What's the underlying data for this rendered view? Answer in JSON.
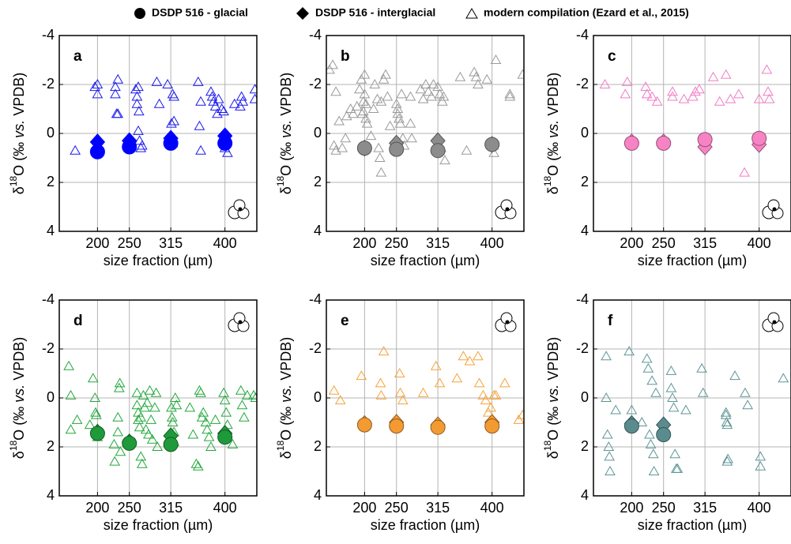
{
  "legend": [
    "DSDP 516 - glacial",
    "DSDP 516 - interglacial",
    "modern compilation (Ezard et al., 2015)"
  ],
  "chart_data": [
    {
      "type": "scatter",
      "label": "a",
      "ylabel": [
        "δ",
        "18",
        "O (‰ ",
        "vs.",
        " VPDB)"
      ],
      "xlabel": "size fraction (µm)",
      "xlim": [
        140,
        450
      ],
      "ylim": [
        4,
        -4
      ],
      "xticks": [
        200,
        250,
        315,
        400
      ],
      "yticks": [
        -4,
        -2,
        0,
        2,
        4
      ],
      "grid": true,
      "series": [
        {
          "marker": "triangle",
          "color": "#1a1aee",
          "x": [
            165,
            196,
            200,
            200,
            228,
            228,
            232,
            230,
            232,
            260,
            262,
            262,
            264,
            265,
            264,
            266,
            268,
            270,
            293,
            297,
            310,
            316,
            318,
            320,
            318,
            320,
            358,
            362,
            360,
            362,
            378,
            380,
            382,
            385,
            388,
            390,
            395,
            398,
            400,
            404,
            415,
            424,
            426,
            428,
            447,
            447
          ],
          "values": [
            0.7,
            -1.9,
            -2.0,
            -1.6,
            -1.6,
            -1.9,
            -2.2,
            -0.8,
            -0.8,
            -1.8,
            -1.5,
            -1.2,
            -1.9,
            -0.9,
            -0.1,
            0.3,
            0.6,
            0.5,
            -2.1,
            -1.2,
            -2.0,
            -0.4,
            -1.6,
            -1.5,
            0.4,
            -0.5,
            -2.1,
            -1.3,
            -0.3,
            0.7,
            -1.7,
            -1.5,
            -1.3,
            -1.1,
            -0.8,
            -1.4,
            -1.0,
            -0.9,
            0.6,
            0.8,
            -1.2,
            -1.1,
            -1.5,
            -1.3,
            -1.8,
            -1.4
          ]
        },
        {
          "marker": "diamond",
          "color": "#0000ff",
          "x": [
            200,
            250,
            315,
            400
          ],
          "values": [
            0.35,
            0.3,
            0.2,
            0.1
          ]
        },
        {
          "marker": "circle",
          "color": "#0000ff",
          "x": [
            200,
            250,
            315,
            400
          ],
          "values": [
            0.75,
            0.55,
            0.4,
            0.4
          ]
        }
      ]
    },
    {
      "type": "scatter",
      "label": "b",
      "ylabel": [
        "δ",
        "18",
        "O (‰ ",
        "vs.",
        " VPDB)"
      ],
      "xlabel": "size fraction (µm)",
      "xlim": [
        140,
        450
      ],
      "ylim": [
        4,
        -4
      ],
      "xticks": [
        200,
        250,
        315,
        400
      ],
      "yticks": [
        -4,
        -2,
        0,
        2,
        4
      ],
      "grid": true,
      "series": [
        {
          "marker": "triangle",
          "color": "#9a9a9a",
          "x": [
            145,
            150,
            155,
            152,
            155,
            160,
            165,
            170,
            172,
            178,
            182,
            188,
            192,
            195,
            196,
            198,
            198,
            200,
            200,
            202,
            202,
            204,
            210,
            214,
            216,
            220,
            222,
            224,
            226,
            226,
            230,
            233,
            236,
            240,
            250,
            252,
            252,
            254,
            256,
            258,
            260,
            262,
            272,
            272,
            274,
            288,
            292,
            296,
            300,
            305,
            308,
            315,
            318,
            320,
            322,
            324,
            326,
            350,
            360,
            372,
            375,
            378,
            392,
            402,
            403,
            406,
            428,
            428,
            448
          ],
          "values": [
            -2.6,
            -2.8,
            -1.7,
            0.5,
            0.7,
            -0.5,
            0.6,
            0.2,
            -0.7,
            -1.0,
            -0.8,
            -1.1,
            -1.8,
            -2.2,
            -0.8,
            -1.3,
            -0.9,
            -2.4,
            -1.6,
            -1.2,
            -0.6,
            -0.4,
            0.1,
            -1.0,
            -2.0,
            -1.4,
            0.6,
            1.0,
            1.6,
            -1.3,
            -2.2,
            -2.4,
            -1.5,
            -0.3,
            -1.2,
            -1.0,
            -0.8,
            -0.6,
            -0.4,
            -1.6,
            0.2,
            0.5,
            -1.5,
            -0.4,
            0.2,
            -1.8,
            -1.4,
            -2.0,
            -1.7,
            -1.5,
            -2.0,
            -1.9,
            -1.6,
            0.6,
            -1.3,
            -1.5,
            1.1,
            -2.3,
            0.7,
            -2.5,
            -2.3,
            -2.0,
            -2.2,
            0.5,
            0.8,
            -3.0,
            -1.5,
            -1.6,
            -2.4
          ]
        },
        {
          "marker": "diamond",
          "color": "#8c8c8c",
          "x": [
            200,
            250,
            315,
            400
          ],
          "values": [
            0.6,
            0.4,
            0.3,
            0.45
          ]
        },
        {
          "marker": "circle",
          "color": "#8c8c8c",
          "x": [
            200,
            250,
            315,
            400
          ],
          "values": [
            0.6,
            0.65,
            0.7,
            0.45
          ]
        }
      ]
    },
    {
      "type": "scatter",
      "label": "c",
      "ylabel": [
        "δ",
        "18",
        "O (‰ ",
        "vs.",
        " VPDB)"
      ],
      "xlabel": "size fraction (µm)",
      "xlim": [
        140,
        450
      ],
      "ylim": [
        4,
        -4
      ],
      "xticks": [
        200,
        250,
        315,
        400
      ],
      "yticks": [
        -4,
        -2,
        0,
        2,
        4
      ],
      "grid": true,
      "series": [
        {
          "marker": "triangle",
          "color": "#f07cc4",
          "x": [
            158,
            190,
            193,
            222,
            224,
            232,
            240,
            264,
            264,
            282,
            296,
            300,
            306,
            328,
            338,
            348,
            355,
            368,
            377,
            400,
            412,
            414,
            416
          ],
          "values": [
            -2.0,
            -1.6,
            -2.1,
            -1.9,
            -1.6,
            -1.5,
            -1.3,
            -1.5,
            -1.7,
            -1.4,
            -1.5,
            -1.7,
            -1.8,
            -2.3,
            -1.3,
            -2.4,
            -1.4,
            -1.6,
            1.6,
            -1.4,
            -2.6,
            -1.7,
            -1.4
          ]
        },
        {
          "marker": "diamond",
          "color": "#f783c4",
          "x": [
            200,
            250,
            315,
            400
          ],
          "values": [
            0.35,
            0.35,
            0.55,
            0.45
          ]
        },
        {
          "marker": "circle",
          "color": "#f783c4",
          "x": [
            200,
            250,
            315,
            400
          ],
          "values": [
            0.4,
            0.4,
            0.25,
            0.2
          ]
        }
      ]
    },
    {
      "type": "scatter",
      "label": "d",
      "ylabel": [
        "δ",
        "18",
        "O (‰ ",
        "vs.",
        " VPDB)"
      ],
      "xlabel": "size fraction (µm)",
      "xlim": [
        140,
        450
      ],
      "ylim": [
        4,
        -4
      ],
      "xticks": [
        200,
        250,
        315,
        400
      ],
      "yticks": [
        -4,
        -2,
        0,
        2,
        4
      ],
      "grid": true,
      "series": [
        {
          "marker": "triangle",
          "color": "#22a83c",
          "x": [
            155,
            158,
            158,
            168,
            188,
            193,
            196,
            197,
            198,
            200,
            226,
            227,
            232,
            232,
            234,
            235,
            236,
            262,
            262,
            264,
            264,
            266,
            268,
            268,
            270,
            272,
            274,
            276,
            278,
            280,
            282,
            284,
            286,
            290,
            292,
            294,
            316,
            317,
            318,
            320,
            320,
            322,
            324,
            345,
            350,
            355,
            358,
            360,
            362,
            364,
            366,
            370,
            372,
            375,
            378,
            385,
            398,
            400,
            402,
            404,
            412,
            425,
            427,
            430,
            435,
            445,
            448
          ],
          "values": [
            -1.3,
            -0.1,
            1.3,
            0.9,
            1.1,
            -0.8,
            0.0,
            0.6,
            0.7,
            1.6,
            1.9,
            2.6,
            0.8,
            1.4,
            -0.4,
            -0.6,
            2.2,
            -0.2,
            0.3,
            0.6,
            0.9,
            1.2,
            0.8,
            2.4,
            2.7,
            -0.1,
            0.4,
            1.3,
            0.2,
            1.5,
            -0.3,
            0.9,
            1.7,
            0.4,
            -0.2,
            2.0,
            0.4,
            0.8,
            1.0,
            1.4,
            1.8,
            0.0,
            0.3,
            0.4,
            1.5,
            2.7,
            2.8,
            -0.3,
            -0.2,
            0.8,
            0.6,
            1.0,
            1.3,
            1.6,
            2.0,
            0.9,
            -0.2,
            0.1,
            0.6,
            1.1,
            1.9,
            -0.3,
            0.3,
            0.8,
            -0.1,
            -0.1,
            0.0
          ]
        },
        {
          "marker": "diamond",
          "color": "#1f9a3a",
          "x": [
            200,
            250,
            315,
            400
          ],
          "values": [
            1.4,
            1.8,
            1.55,
            1.45
          ]
        },
        {
          "marker": "circle",
          "color": "#1f9a3a",
          "x": [
            200,
            250,
            315,
            400
          ],
          "values": [
            1.45,
            1.85,
            1.9,
            1.6
          ]
        }
      ]
    },
    {
      "type": "scatter",
      "label": "e",
      "ylabel": [
        "δ",
        "18",
        "O (‰ ",
        "vs.",
        " VPDB)"
      ],
      "xlabel": "size fraction (µm)",
      "xlim": [
        140,
        450
      ],
      "ylim": [
        4,
        -4
      ],
      "xticks": [
        200,
        250,
        315,
        400
      ],
      "yticks": [
        -4,
        -2,
        0,
        2,
        4
      ],
      "grid": true,
      "series": [
        {
          "marker": "triangle",
          "color": "#f5a23a",
          "x": [
            152,
            162,
            195,
            225,
            226,
            230,
            255,
            256,
            260,
            292,
            312,
            318,
            345,
            355,
            365,
            378,
            380,
            386,
            390,
            394,
            398,
            403,
            406,
            420,
            442,
            448
          ],
          "values": [
            -0.3,
            0.1,
            -0.9,
            -0.6,
            -0.1,
            -1.9,
            -1.0,
            -0.2,
            0.1,
            -0.2,
            -1.3,
            -0.6,
            -0.8,
            -1.7,
            -1.5,
            -1.7,
            -0.6,
            -0.1,
            0.1,
            0.6,
            0.4,
            -0.1,
            -0.1,
            -0.6,
            0.9,
            0.7
          ]
        },
        {
          "marker": "diamond",
          "color": "#f39a33",
          "x": [
            200,
            250,
            315,
            400
          ],
          "values": [
            1.05,
            1.0,
            1.1,
            1.0
          ]
        },
        {
          "marker": "circle",
          "color": "#f39a33",
          "x": [
            200,
            250,
            315,
            400
          ],
          "values": [
            1.1,
            1.15,
            1.2,
            1.15
          ]
        }
      ]
    },
    {
      "type": "scatter",
      "label": "f",
      "ylabel": [
        "δ",
        "18",
        "O (‰ ",
        "vs.",
        " VPDB)"
      ],
      "xlabel": "size fraction (µm)",
      "xlim": [
        140,
        450
      ],
      "ylim": [
        4,
        -4
      ],
      "xticks": [
        200,
        250,
        315,
        400
      ],
      "yticks": [
        -4,
        -2,
        0,
        2,
        4
      ],
      "grid": true,
      "series": [
        {
          "marker": "triangle",
          "color": "#5e9597",
          "x": [
            160,
            160,
            162,
            164,
            165,
            166,
            175,
            196,
            200,
            216,
            224,
            226,
            228,
            230,
            232,
            234,
            235,
            238,
            262,
            262,
            264,
            266,
            268,
            270,
            272,
            285,
            310,
            312,
            348,
            348,
            349,
            350,
            350,
            351,
            362,
            378,
            382,
            402,
            402,
            438
          ],
          "values": [
            -1.7,
            0.0,
            1.5,
            2.0,
            2.4,
            3.0,
            0.5,
            -1.9,
            0.5,
            1.0,
            -1.6,
            -1.2,
            1.5,
            1.9,
            -0.7,
            2.3,
            3.0,
            -0.2,
            -1.1,
            -0.4,
            0.0,
            0.4,
            2.3,
            2.9,
            2.9,
            0.5,
            -1.2,
            -0.2,
            0.6,
            0.7,
            1.0,
            1.1,
            2.6,
            2.5,
            -0.9,
            -0.2,
            0.3,
            2.4,
            2.8,
            -0.8
          ]
        },
        {
          "marker": "diamond",
          "color": "#5a8c8e",
          "x": [
            200,
            250
          ],
          "values": [
            1.05,
            1.1
          ]
        },
        {
          "marker": "circle",
          "color": "#5a8c8e",
          "x": [
            200,
            250
          ],
          "values": [
            1.15,
            1.5
          ]
        }
      ]
    }
  ]
}
